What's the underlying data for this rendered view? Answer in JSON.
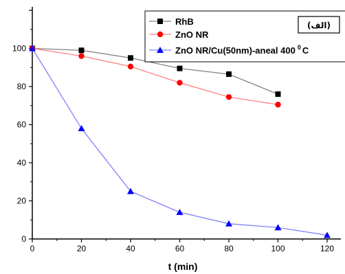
{
  "chart_data": {
    "type": "line",
    "xlabel": "t (min)",
    "ylabel": "",
    "xlim": [
      0,
      120
    ],
    "ylim": [
      0,
      120
    ],
    "x_ticks": [
      0,
      20,
      40,
      60,
      80,
      100,
      120
    ],
    "y_ticks": [
      0,
      20,
      40,
      60,
      80,
      100,
      120
    ],
    "y_ticks_shown": [
      0,
      20,
      40,
      60,
      80,
      100
    ],
    "grid": false,
    "legend_position": "top-right",
    "annotation": "(الف)",
    "series": [
      {
        "name": "RhB",
        "color": "#000000",
        "line_color": "#808080",
        "marker": "square",
        "x": [
          0,
          20,
          40,
          60,
          80,
          100
        ],
        "y": [
          100,
          99,
          95,
          89.5,
          86.5,
          76
        ]
      },
      {
        "name": "ZnO NR",
        "color": "#ff0000",
        "line_color": "#ff8080",
        "marker": "circle",
        "x": [
          0,
          20,
          40,
          60,
          80,
          100
        ],
        "y": [
          100,
          96,
          90.5,
          82,
          74.5,
          70.5
        ]
      },
      {
        "name": "ZnO NR/Cu(50nm)-aneal 400",
        "name_suffix": "0",
        "name_tail": "C",
        "color": "#0000ff",
        "line_color": "#8080ff",
        "marker": "triangle",
        "x": [
          0,
          20,
          40,
          60,
          80,
          100,
          120
        ],
        "y": [
          100,
          58,
          25,
          14,
          8,
          6,
          2
        ]
      }
    ]
  }
}
